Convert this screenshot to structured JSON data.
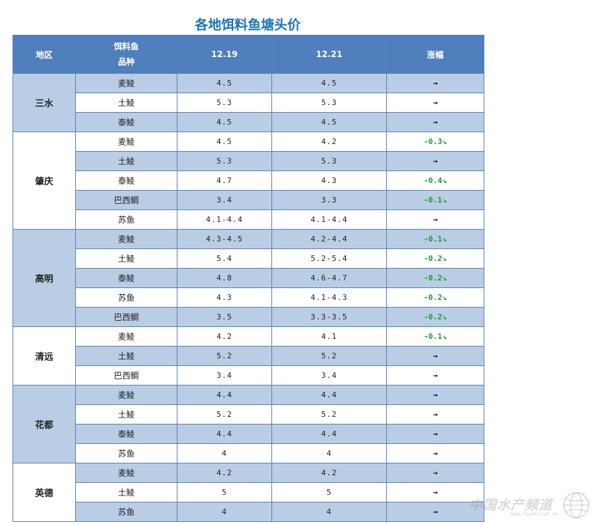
{
  "title": "各地饵料鱼塘头价",
  "header": {
    "region": "地区",
    "species_line1": "饵料鱼",
    "species_line2": "品种",
    "date1": "12.19",
    "date2": "12.21",
    "change": "涨幅"
  },
  "regions": [
    {
      "name": "三水",
      "rows": [
        {
          "species": "麦鲮",
          "p1": "4.5",
          "p2": "4.5",
          "change": "→",
          "dir": "flat"
        },
        {
          "species": "土鲮",
          "p1": "5.3",
          "p2": "5.3",
          "change": "→",
          "dir": "flat"
        },
        {
          "species": "泰鲮",
          "p1": "4.5",
          "p2": "4.5",
          "change": "→",
          "dir": "flat"
        }
      ]
    },
    {
      "name": "肇庆",
      "rows": [
        {
          "species": "麦鲮",
          "p1": "4.5",
          "p2": "4.2",
          "change": "-0.3↘",
          "dir": "down"
        },
        {
          "species": "土鲮",
          "p1": "5.3",
          "p2": "5.3",
          "change": "→",
          "dir": "flat"
        },
        {
          "species": "泰鲮",
          "p1": "4.7",
          "p2": "4.3",
          "change": "-0.4↘",
          "dir": "down"
        },
        {
          "species": "巴西鲷",
          "p1": "3.4",
          "p2": "3.3",
          "change": "-0.1↘",
          "dir": "down"
        },
        {
          "species": "苏鱼",
          "p1": "4.1-4.4",
          "p2": "4.1-4.4",
          "change": "→",
          "dir": "flat"
        }
      ]
    },
    {
      "name": "高明",
      "rows": [
        {
          "species": "麦鲮",
          "p1": "4.3-4.5",
          "p2": "4.2-4.4",
          "change": "-0.1↘",
          "dir": "down"
        },
        {
          "species": "土鲮",
          "p1": "5.4",
          "p2": "5.2-5.4",
          "change": "-0.2↘",
          "dir": "down"
        },
        {
          "species": "泰鲮",
          "p1": "4.8",
          "p2": "4.6-4.7",
          "change": "-0.2↘",
          "dir": "down"
        },
        {
          "species": "苏鱼",
          "p1": "4.3",
          "p2": "4.1-4.3",
          "change": "-0.2↘",
          "dir": "down"
        },
        {
          "species": "巴西鲷",
          "p1": "3.5",
          "p2": "3.3-3.5",
          "change": "-0.2↘",
          "dir": "down"
        }
      ]
    },
    {
      "name": "清远",
      "rows": [
        {
          "species": "麦鲮",
          "p1": "4.2",
          "p2": "4.1",
          "change": "-0.1↘",
          "dir": "down"
        },
        {
          "species": "土鲮",
          "p1": "5.2",
          "p2": "5.2",
          "change": "→",
          "dir": "flat"
        },
        {
          "species": "巴西鲷",
          "p1": "3.4",
          "p2": "3.4",
          "change": "→",
          "dir": "flat"
        }
      ]
    },
    {
      "name": "花都",
      "rows": [
        {
          "species": "麦鲮",
          "p1": "4.4",
          "p2": "4.4",
          "change": "→",
          "dir": "flat"
        },
        {
          "species": "土鲮",
          "p1": "5.2",
          "p2": "5.2",
          "change": "→",
          "dir": "flat"
        },
        {
          "species": "泰鲮",
          "p1": "4.4",
          "p2": "4.4",
          "change": "→",
          "dir": "flat"
        },
        {
          "species": "苏鱼",
          "p1": "4",
          "p2": "4",
          "change": "→",
          "dir": "flat"
        }
      ]
    },
    {
      "name": "英德",
      "rows": [
        {
          "species": "麦鲮",
          "p1": "4.2",
          "p2": "4.2",
          "change": "→",
          "dir": "flat"
        },
        {
          "species": "土鲮",
          "p1": "5",
          "p2": "5",
          "change": "→",
          "dir": "flat"
        },
        {
          "species": "苏鱼",
          "p1": "4",
          "p2": "4",
          "change": "→",
          "dir": "flat"
        }
      ]
    }
  ],
  "watermark": {
    "text": "中国水产频道",
    "sub": "www.fishfirst.cn",
    "icon": "globe-icon"
  },
  "colors": {
    "header_bg": "#4f80bd",
    "band_bg": "#b9cde4",
    "title": "#1a76b5",
    "decrease": "#1a9a3a"
  }
}
